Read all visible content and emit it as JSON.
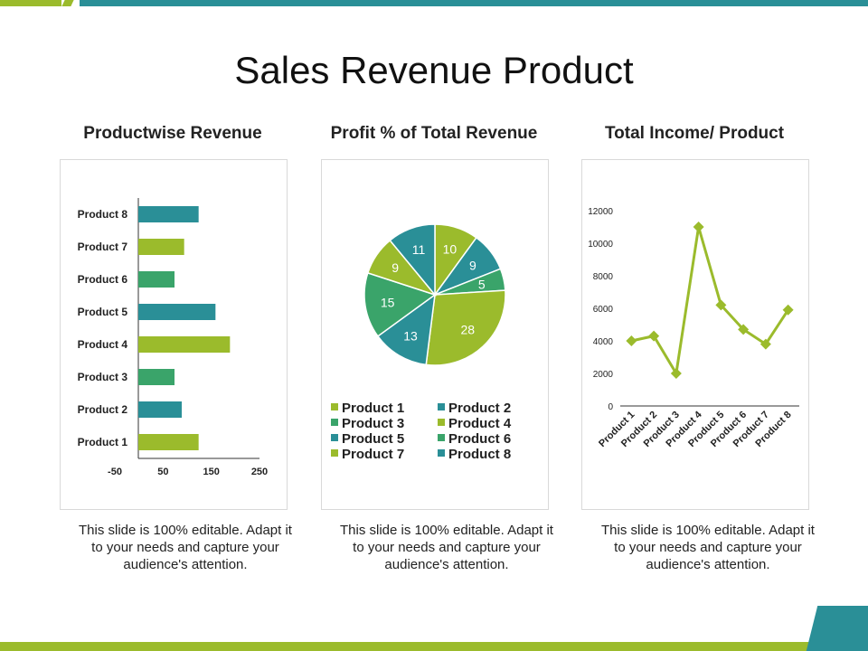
{
  "page": {
    "title": "Sales Revenue Product"
  },
  "colors": {
    "green": "#9bbb2c",
    "teal": "#2a8f97",
    "mid_green": "#3aa46a"
  },
  "panels": [
    {
      "title": "Productwise Revenue",
      "caption": "This slide is 100% editable. Adapt it to your needs and capture your audience's attention."
    },
    {
      "title": "Profit % of Total Revenue",
      "caption": "This slide is 100% editable. Adapt it to your needs and capture your audience's attention."
    },
    {
      "title": "Total Income/ Product",
      "caption": "This slide is 100% editable. Adapt it to your needs and capture your audience's attention."
    }
  ],
  "chart_data": [
    {
      "type": "bar",
      "orientation": "horizontal",
      "categories": [
        "Product 1",
        "Product 2",
        "Product 3",
        "Product 4",
        "Product 5",
        "Product 6",
        "Product 7",
        "Product 8"
      ],
      "values": [
        125,
        90,
        75,
        190,
        160,
        75,
        95,
        125
      ],
      "bar_colors": [
        "#9bbb2c",
        "#2a8f97",
        "#3aa46a",
        "#9bbb2c",
        "#2a8f97",
        "#3aa46a",
        "#9bbb2c",
        "#2a8f97"
      ],
      "xlim": [
        -50,
        250
      ],
      "xticks": [
        -50,
        50,
        150,
        250
      ],
      "grid": false
    },
    {
      "type": "pie",
      "labels": [
        "Product 1",
        "Product 2",
        "Product 3",
        "Product 4",
        "Product 5",
        "Product 6",
        "Product 7",
        "Product 8"
      ],
      "values": [
        10,
        9,
        5,
        28,
        13,
        15,
        9,
        11
      ],
      "slice_colors": [
        "#9bbb2c",
        "#2a8f97",
        "#3aa46a",
        "#9bbb2c",
        "#2a8f97",
        "#3aa46a",
        "#9bbb2c",
        "#2a8f97"
      ],
      "legend": "bottom"
    },
    {
      "type": "line",
      "categories": [
        "Product 1",
        "Product 2",
        "Product 3",
        "Product 4",
        "Product 5",
        "Product 6",
        "Product 7",
        "Product 8"
      ],
      "values": [
        4000,
        4300,
        2000,
        11000,
        6200,
        4700,
        3800,
        5900
      ],
      "ylim": [
        0,
        12000
      ],
      "yticks": [
        0,
        2000,
        4000,
        6000,
        8000,
        10000,
        12000
      ],
      "color": "#9bbb2c",
      "marker": "diamond",
      "grid": false
    }
  ]
}
